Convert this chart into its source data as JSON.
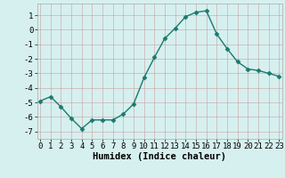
{
  "x": [
    0,
    1,
    2,
    3,
    4,
    5,
    6,
    7,
    8,
    9,
    10,
    11,
    12,
    13,
    14,
    15,
    16,
    17,
    18,
    19,
    20,
    21,
    22,
    23
  ],
  "y": [
    -4.9,
    -4.6,
    -5.3,
    -6.1,
    -6.8,
    -6.2,
    -6.2,
    -6.2,
    -5.8,
    -5.1,
    -3.3,
    -1.9,
    -0.6,
    0.1,
    0.9,
    1.2,
    1.3,
    -0.3,
    -1.3,
    -2.2,
    -2.7,
    -2.8,
    -3.0,
    -3.2
  ],
  "line_color": "#1a7a6e",
  "marker": "D",
  "markersize": 2.5,
  "linewidth": 1.0,
  "bg_color": "#d6f0ef",
  "grid_color_minor": "#c8e8e4",
  "grid_color_major": "#b8d8d4",
  "xlabel": "Humidex (Indice chaleur)",
  "xlabel_fontsize": 7.5,
  "tick_fontsize": 6.5,
  "yticks": [
    -7,
    -6,
    -5,
    -4,
    -3,
    -2,
    -1,
    0,
    1
  ],
  "xticks": [
    0,
    1,
    2,
    3,
    4,
    5,
    6,
    7,
    8,
    9,
    10,
    11,
    12,
    13,
    14,
    15,
    16,
    17,
    18,
    19,
    20,
    21,
    22,
    23
  ],
  "xlim": [
    -0.3,
    23.3
  ],
  "ylim": [
    -7.5,
    1.8
  ]
}
